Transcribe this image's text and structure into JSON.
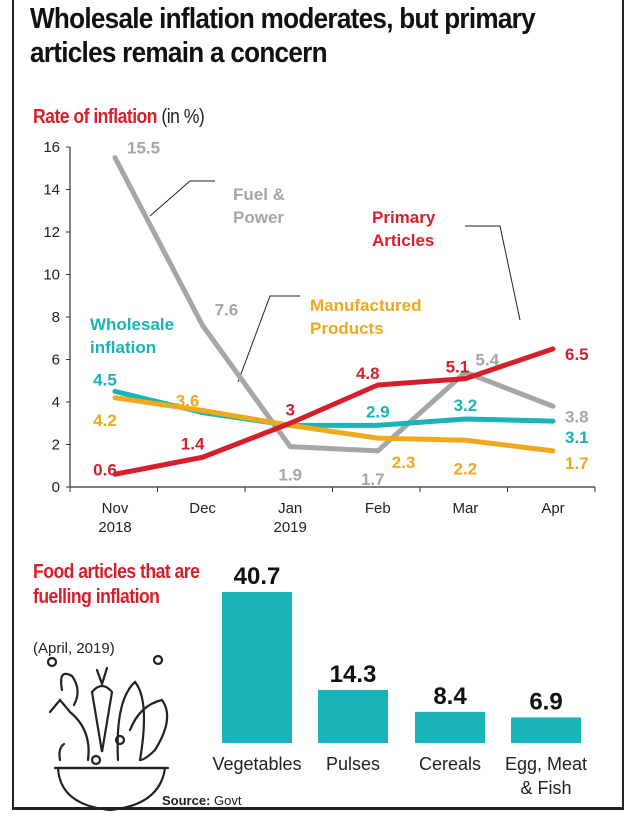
{
  "title": "Wholesale inflation moderates, but primary articles remain a concern",
  "chart_data": [
    {
      "type": "line",
      "title": "Rate of inflation",
      "unit": "(in %)",
      "categories": [
        "Nov 2018",
        "Dec",
        "Jan 2019",
        "Feb",
        "Mar",
        "Apr"
      ],
      "category_lines": [
        [
          "Nov",
          "2018"
        ],
        [
          "Dec",
          ""
        ],
        [
          "Jan",
          "2019"
        ],
        [
          "Feb",
          ""
        ],
        [
          "Mar",
          ""
        ],
        [
          "Apr",
          ""
        ]
      ],
      "ylim": [
        0,
        16
      ],
      "yticks": [
        0,
        2,
        4,
        6,
        8,
        10,
        12,
        14,
        16
      ],
      "grid": false,
      "series": [
        {
          "name": "Fuel & Power",
          "name_lines": [
            "Fuel &",
            "Power"
          ],
          "color": "#a6a6a6",
          "values": [
            15.5,
            7.6,
            1.9,
            1.7,
            5.4,
            3.8
          ]
        },
        {
          "name": "Wholesale inflation",
          "name_lines": [
            "Wholesale",
            "inflation"
          ],
          "color": "#19b3b8",
          "values": [
            4.5,
            3.5,
            2.9,
            2.9,
            3.2,
            3.1
          ],
          "labels": [
            "4.5",
            "",
            "",
            "2.9",
            "3.2",
            "3.1"
          ]
        },
        {
          "name": "Manufactured Products",
          "name_lines": [
            "Manufactured",
            "Products"
          ],
          "color": "#f0a81c",
          "values": [
            4.2,
            3.6,
            2.9,
            2.3,
            2.2,
            1.7
          ]
        },
        {
          "name": "Primary Articles",
          "name_lines": [
            "Primary",
            "Articles"
          ],
          "color": "#d71f2b",
          "values": [
            0.6,
            1.4,
            3,
            4.8,
            5.1,
            6.5
          ]
        }
      ]
    },
    {
      "type": "bar",
      "title": "Food articles that are fuelling inflation",
      "subtitle": "(April, 2019)",
      "categories": [
        "Vegetables",
        "Pulses",
        "Cereals",
        "Egg, Meat & Fish"
      ],
      "category_lines": [
        [
          "Vegetables"
        ],
        [
          "Pulses"
        ],
        [
          "Cereals"
        ],
        [
          "Egg, Meat",
          "& Fish"
        ]
      ],
      "values": [
        40.7,
        14.3,
        8.4,
        6.9
      ],
      "color": "#19b3b8"
    }
  ],
  "source_label": "Source:",
  "source_value": "Govt",
  "icons": {
    "food_bowl": "bowl-of-food-icon"
  }
}
